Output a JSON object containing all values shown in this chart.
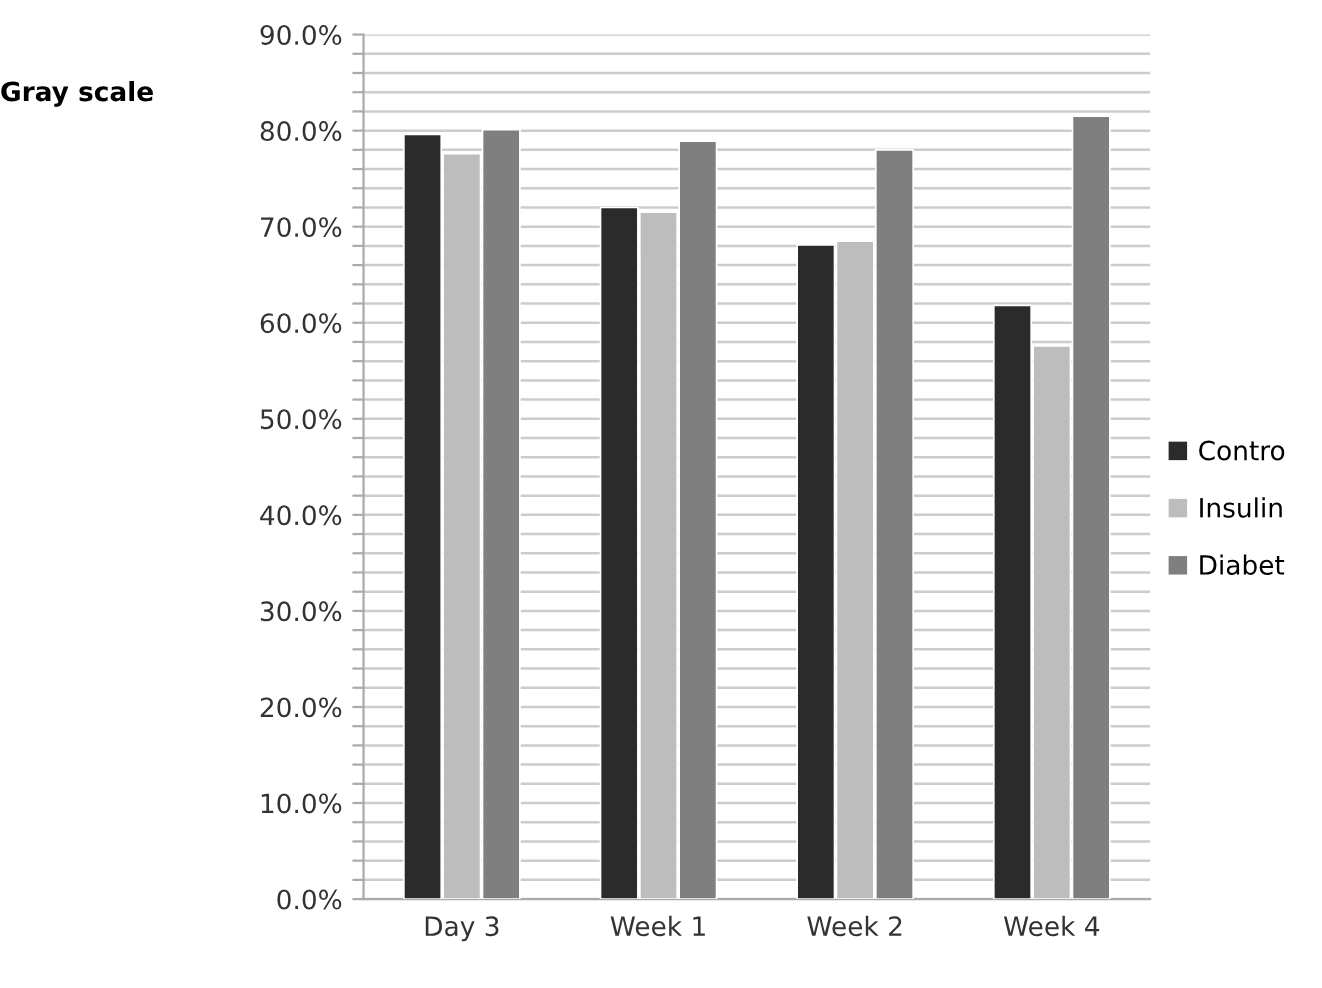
{
  "chart_data": {
    "type": "bar",
    "ylabel": "Gray scale",
    "categories": [
      "Day 3",
      "Week 1",
      "Week 2",
      "Week 4"
    ],
    "series": [
      {
        "name": "Contro",
        "color": "#2b2b2b",
        "values": [
          79.6,
          72.0,
          68.1,
          61.8
        ]
      },
      {
        "name": "Insulin",
        "color": "#bdbdbd",
        "values": [
          77.6,
          71.5,
          68.5,
          57.6
        ]
      },
      {
        "name": "Diabet",
        "color": "#7f7f7f",
        "values": [
          80.1,
          78.9,
          78.0,
          81.5
        ]
      }
    ],
    "ylim": [
      0,
      90
    ],
    "yticks": [
      {
        "value": 0,
        "label": "0.0%"
      },
      {
        "value": 2,
        "label": null
      },
      {
        "value": 4,
        "label": null
      },
      {
        "value": 6,
        "label": null
      },
      {
        "value": 8,
        "label": null
      },
      {
        "value": 10,
        "label": "10.0%"
      },
      {
        "value": 12,
        "label": null
      },
      {
        "value": 14,
        "label": null
      },
      {
        "value": 16,
        "label": null
      },
      {
        "value": 18,
        "label": null
      },
      {
        "value": 20,
        "label": "20.0%"
      },
      {
        "value": 22,
        "label": null
      },
      {
        "value": 24,
        "label": null
      },
      {
        "value": 26,
        "label": null
      },
      {
        "value": 28,
        "label": null
      },
      {
        "value": 30,
        "label": "30.0%"
      },
      {
        "value": 32,
        "label": null
      },
      {
        "value": 34,
        "label": null
      },
      {
        "value": 36,
        "label": null
      },
      {
        "value": 38,
        "label": null
      },
      {
        "value": 40,
        "label": "40.0%"
      },
      {
        "value": 42,
        "label": null
      },
      {
        "value": 44,
        "label": null
      },
      {
        "value": 46,
        "label": null
      },
      {
        "value": 48,
        "label": null
      },
      {
        "value": 50,
        "label": "50.0%"
      },
      {
        "value": 52,
        "label": null
      },
      {
        "value": 54,
        "label": null
      },
      {
        "value": 56,
        "label": null
      },
      {
        "value": 58,
        "label": null
      },
      {
        "value": 60,
        "label": "60.0%"
      },
      {
        "value": 62,
        "label": null
      },
      {
        "value": 64,
        "label": null
      },
      {
        "value": 66,
        "label": null
      },
      {
        "value": 68,
        "label": null
      },
      {
        "value": 70,
        "label": "70.0%"
      },
      {
        "value": 72,
        "label": null
      },
      {
        "value": 74,
        "label": null
      },
      {
        "value": 76,
        "label": null
      },
      {
        "value": 78,
        "label": null
      },
      {
        "value": 80,
        "label": "80.0%"
      },
      {
        "value": 82,
        "label": null
      },
      {
        "value": 84,
        "label": null
      },
      {
        "value": 86,
        "label": null
      },
      {
        "value": 88,
        "label": null
      },
      {
        "value": 90,
        "label": "90.0%"
      }
    ],
    "grid": "y",
    "legend": "right"
  }
}
